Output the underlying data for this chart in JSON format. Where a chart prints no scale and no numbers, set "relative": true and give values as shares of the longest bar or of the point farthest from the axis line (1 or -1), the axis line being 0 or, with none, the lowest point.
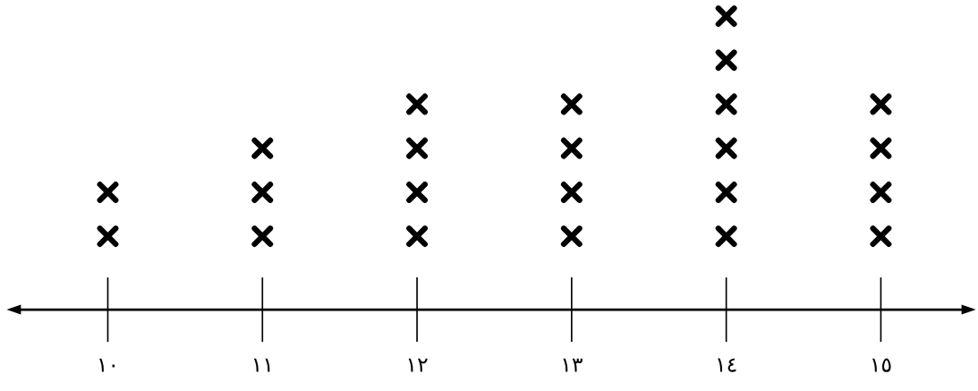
{
  "chart_data": {
    "type": "scatter",
    "marker": "cross",
    "color": "#000000",
    "tick_labels": "x",
    "relative": true,
    "x": [
      10,
      10,
      11,
      11,
      11,
      12,
      12,
      12,
      12,
      13,
      13,
      13,
      13,
      14,
      14,
      14,
      14,
      14,
      14,
      15,
      15,
      15,
      15
    ],
    "values": [
      0.25,
      0.4,
      0.25,
      0.4,
      0.55,
      0.25,
      0.4,
      0.55,
      0.7,
      0.25,
      0.4,
      0.55,
      0.7,
      0.25,
      0.4,
      0.55,
      0.7,
      0.85,
      1,
      0.25,
      0.4,
      0.55,
      0.7
    ],
    "xlim": [
      9.43,
      15.53
    ],
    "xticks": [
      {
        "value": 10,
        "label": "١٠"
      },
      {
        "value": 11,
        "label": "١١"
      },
      {
        "value": 12,
        "label": "١٢"
      },
      {
        "value": 13,
        "label": "١٣"
      },
      {
        "value": 14,
        "label": "١٤"
      },
      {
        "value": 15,
        "label": "١٥"
      }
    ]
  }
}
